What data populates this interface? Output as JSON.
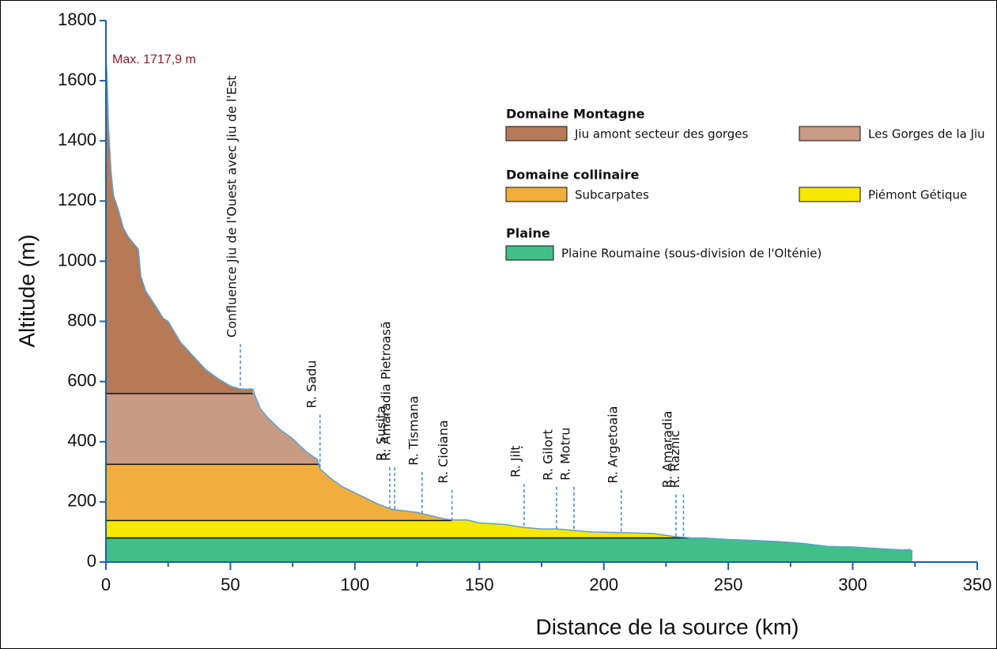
{
  "chart_data": {
    "type": "profile",
    "x_label": "Distance de la source (km)",
    "y_label": "Altitude (m)",
    "xlim": [
      0,
      350
    ],
    "xticks": [
      0,
      50,
      100,
      150,
      200,
      250,
      300,
      350
    ],
    "xminorticks": [
      25,
      75,
      125,
      175,
      225,
      275,
      325
    ],
    "ylim": [
      0,
      1800
    ],
    "yticks": [
      0,
      200,
      400,
      600,
      800,
      1000,
      1200,
      1400,
      1600,
      1800
    ],
    "profile": {
      "color": "#5a9fd0",
      "x": [
        0,
        0.5,
        1,
        2,
        3,
        5,
        7,
        9,
        11,
        13,
        14,
        16,
        20,
        23,
        25,
        30,
        40,
        45,
        50,
        54,
        59,
        60,
        62,
        65,
        70,
        75,
        80,
        85,
        86,
        90,
        95,
        100,
        105,
        110,
        115,
        120,
        125,
        130,
        135,
        139,
        145,
        150,
        160,
        168,
        175,
        181,
        188,
        195,
        207,
        220,
        228,
        235,
        240,
        250,
        260,
        270,
        280,
        290,
        300,
        310,
        320,
        323,
        324
      ],
      "y": [
        1680,
        1600,
        1450,
        1300,
        1220,
        1170,
        1110,
        1080,
        1060,
        1040,
        950,
        900,
        850,
        810,
        800,
        730,
        640,
        610,
        585,
        575,
        575,
        550,
        510,
        480,
        440,
        410,
        370,
        340,
        310,
        280,
        250,
        230,
        210,
        190,
        175,
        170,
        165,
        155,
        145,
        140,
        140,
        130,
        125,
        115,
        110,
        110,
        105,
        100,
        98,
        95,
        85,
        80,
        80,
        75,
        72,
        68,
        62,
        52,
        50,
        45,
        40,
        42,
        35
      ]
    },
    "max_label": "Max. 1717,9 m",
    "domains": [
      {
        "name": "Domaine Montagne",
        "bands": [
          {
            "name": "Jiu amont secteur des gorges",
            "color": "#b67a56",
            "range": [
              560,
              1800
            ],
            "xmax": 59
          },
          {
            "name": "Les Gorges de la Jiu",
            "color": "#c99b83",
            "range": [
              325,
              560
            ],
            "xmax": 86
          }
        ]
      },
      {
        "name": "Domaine collinaire",
        "bands": [
          {
            "name": "Subcarpates",
            "color": "#f1ae3c",
            "range": [
              138,
              325
            ],
            "xmax": 139
          },
          {
            "name": "Piémont Gétique",
            "color": "#f8e800",
            "range": [
              80,
              138
            ],
            "xmax": 234
          }
        ]
      },
      {
        "name": "Plaine",
        "bands": [
          {
            "name": "Plaine Roumaine (sous-division de l'Olténie)",
            "color": "#40bf89",
            "range": [
              0,
              80
            ],
            "xmax": 324
          }
        ]
      }
    ],
    "tributaries": [
      {
        "label": "Confluence Jiu de l'Ouest avec Jiu de l'Est",
        "x": 54,
        "top": 725
      },
      {
        "label": "R. Sadu",
        "x": 86,
        "top": 490
      },
      {
        "label": "R. Sușița",
        "x": 114,
        "top": 315
      },
      {
        "label": "R. Amaradia Pietroasă",
        "x": 116,
        "top": 315
      },
      {
        "label": "R. Tismana",
        "x": 127,
        "top": 300
      },
      {
        "label": "R. Cioiana",
        "x": 139,
        "top": 240
      },
      {
        "label": "R. Jilț",
        "x": 168,
        "top": 260
      },
      {
        "label": "R. Gilort",
        "x": 181,
        "top": 250
      },
      {
        "label": "R. Motru",
        "x": 188,
        "top": 250
      },
      {
        "label": "R. Argetoaia",
        "x": 207,
        "top": 240
      },
      {
        "label": "R. Amaradia",
        "x": 229,
        "top": 225
      },
      {
        "label": "R. Raznic",
        "x": 232,
        "top": 225
      }
    ]
  }
}
